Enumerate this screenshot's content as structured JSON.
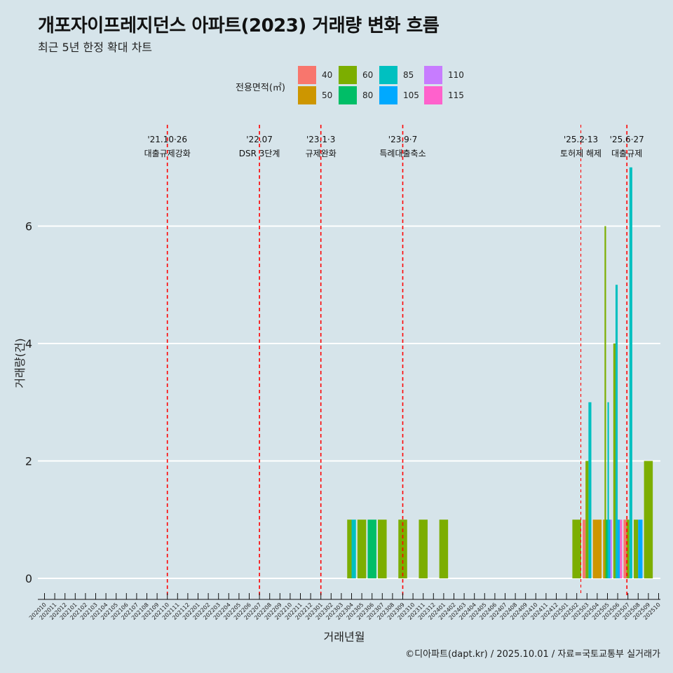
{
  "header": {
    "title": "개포자이프레지던스 아파트(2023) 거래량 변화 흐름",
    "subtitle": "최근 5년 한정 확대 차트"
  },
  "legend": {
    "title": "전용면적(㎡)",
    "items": [
      {
        "label": "40",
        "color": "#F8766D"
      },
      {
        "label": "50",
        "color": "#CD9600"
      },
      {
        "label": "60",
        "color": "#7CAE00"
      },
      {
        "label": "80",
        "color": "#00BE67"
      },
      {
        "label": "85",
        "color": "#00C0C0"
      },
      {
        "label": "105",
        "color": "#00A9FF"
      },
      {
        "label": "110",
        "color": "#C77CFF"
      },
      {
        "label": "115",
        "color": "#FF61CC"
      }
    ]
  },
  "caption": "©디아파트(dapt.kr) / 2025.10.01 / 자료=국토교통부 실거래가",
  "chart_data": {
    "type": "bar",
    "title": "개포자이프레지던스 아파트(2023) 거래량 변화 흐름",
    "subtitle": "최근 5년 한정 확대 차트",
    "xlabel": "거래년월",
    "ylabel": "거래량(건)",
    "ylim": [
      0,
      7
    ],
    "yticks": [
      0,
      2,
      4,
      6
    ],
    "grid": true,
    "legend_position": "top",
    "categories": [
      "202010",
      "202011",
      "202012",
      "202101",
      "202102",
      "202103",
      "202104",
      "202105",
      "202106",
      "202107",
      "202108",
      "202109",
      "202110",
      "202111",
      "202112",
      "202201",
      "202202",
      "202203",
      "202204",
      "202205",
      "202206",
      "202207",
      "202208",
      "202209",
      "202210",
      "202211",
      "202212",
      "202301",
      "202302",
      "202303",
      "202304",
      "202305",
      "202306",
      "202307",
      "202308",
      "202309",
      "202310",
      "202311",
      "202312",
      "202401",
      "202402",
      "202403",
      "202404",
      "202405",
      "202406",
      "202407",
      "202408",
      "202409",
      "202410",
      "202411",
      "202412",
      "202501",
      "202502",
      "202503",
      "202504",
      "202505",
      "202506",
      "202507",
      "202508",
      "202509",
      "202510"
    ],
    "bars": [
      {
        "month": "202304",
        "series": [
          {
            "area": "60",
            "value": 1
          },
          {
            "area": "85",
            "value": 1
          }
        ]
      },
      {
        "month": "202305",
        "series": [
          {
            "area": "60",
            "value": 1
          }
        ]
      },
      {
        "month": "202306",
        "series": [
          {
            "area": "80",
            "value": 1
          }
        ]
      },
      {
        "month": "202307",
        "series": [
          {
            "area": "60",
            "value": 1
          }
        ]
      },
      {
        "month": "202309",
        "series": [
          {
            "area": "60",
            "value": 1
          }
        ]
      },
      {
        "month": "202311",
        "series": [
          {
            "area": "60",
            "value": 1
          }
        ]
      },
      {
        "month": "202401",
        "series": [
          {
            "area": "60",
            "value": 1
          }
        ]
      },
      {
        "month": "202502",
        "series": [
          {
            "area": "60",
            "value": 1
          }
        ]
      },
      {
        "month": "202503",
        "series": [
          {
            "area": "40",
            "value": 1
          },
          {
            "area": "60",
            "value": 2
          },
          {
            "area": "85",
            "value": 3
          }
        ]
      },
      {
        "month": "202504",
        "series": [
          {
            "area": "50",
            "value": 1
          }
        ]
      },
      {
        "month": "202505",
        "series": [
          {
            "area": "50",
            "value": 1
          },
          {
            "area": "60",
            "value": 6
          },
          {
            "area": "80",
            "value": 1
          },
          {
            "area": "85",
            "value": 3
          },
          {
            "area": "105",
            "value": 1
          },
          {
            "area": "110",
            "value": 1
          }
        ]
      },
      {
        "month": "202506",
        "series": [
          {
            "area": "60",
            "value": 4
          },
          {
            "area": "85",
            "value": 5
          },
          {
            "area": "105",
            "value": 1
          },
          {
            "area": "115",
            "value": 1
          }
        ]
      },
      {
        "month": "202507",
        "series": [
          {
            "area": "40",
            "value": 1
          },
          {
            "area": "60",
            "value": 1
          },
          {
            "area": "85",
            "value": 7
          }
        ]
      },
      {
        "month": "202508",
        "series": [
          {
            "area": "60",
            "value": 1
          },
          {
            "area": "105",
            "value": 1
          }
        ]
      },
      {
        "month": "202509",
        "series": [
          {
            "area": "60",
            "value": 2
          }
        ]
      }
    ],
    "annotations": [
      {
        "month": "202110",
        "offset": 0,
        "date": "'21.10·26",
        "label": "대출규제강화",
        "style": "thick"
      },
      {
        "month": "202207",
        "offset": 0,
        "date": "'22.07",
        "label": "DSR 3단계",
        "style": "thick"
      },
      {
        "month": "202301",
        "offset": 0,
        "date": "'23.1·3",
        "label": "규제완화",
        "style": "thick"
      },
      {
        "month": "202309",
        "offset": 0,
        "date": "'23.9·7",
        "label": "특례대출축소",
        "style": "thick"
      },
      {
        "month": "202502",
        "offset": 0.4,
        "date": "'25.2·13",
        "label": "토허제 해제",
        "style": "thin"
      },
      {
        "month": "202506",
        "offset": 0.9,
        "date": "'25.6·27",
        "label": "대출규제",
        "style": "thick"
      }
    ]
  }
}
